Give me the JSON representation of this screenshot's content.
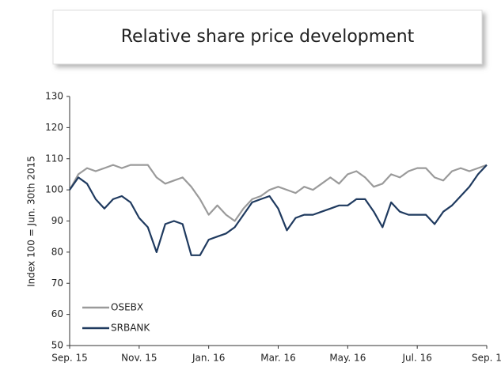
{
  "chart_data": {
    "type": "line",
    "title": "Relative share price development",
    "y_label": "Index 100 = Jun. 30th 2015",
    "categories": [
      "Sep. 15",
      null,
      null,
      null,
      null,
      null,
      null,
      null,
      "Nov. 15",
      null,
      null,
      null,
      null,
      null,
      null,
      null,
      "Jan. 16",
      null,
      null,
      null,
      null,
      null,
      null,
      null,
      "Mar. 16",
      null,
      null,
      null,
      null,
      null,
      null,
      null,
      "May. 16",
      null,
      null,
      null,
      null,
      null,
      null,
      null,
      "Jul. 16",
      null,
      null,
      null,
      null,
      null,
      null,
      null,
      "Sep. 1"
    ],
    "series": [
      {
        "name": "OSEBX",
        "color": "#9a9a9a",
        "values": [
          100,
          105,
          107,
          106,
          107,
          108,
          107,
          108,
          108,
          108,
          104,
          102,
          103,
          104,
          101,
          97,
          92,
          95,
          92,
          90,
          94,
          97,
          98,
          100,
          101,
          100,
          99,
          101,
          100,
          102,
          104,
          102,
          105,
          106,
          104,
          101,
          102,
          105,
          104,
          106,
          107,
          107,
          104,
          103,
          106,
          107,
          106,
          107,
          108
        ]
      },
      {
        "name": "SRBANK",
        "color": "#1f3a5f",
        "values": [
          100,
          104,
          102,
          97,
          94,
          97,
          98,
          96,
          91,
          88,
          80,
          89,
          90,
          89,
          79,
          79,
          84,
          85,
          86,
          88,
          92,
          96,
          97,
          98,
          94,
          87,
          91,
          92,
          92,
          93,
          94,
          95,
          95,
          97,
          97,
          93,
          88,
          96,
          93,
          92,
          92,
          92,
          89,
          93,
          95,
          98,
          101,
          105,
          108
        ]
      }
    ],
    "ylim": [
      50,
      130
    ],
    "yticks": [
      50,
      60,
      70,
      80,
      90,
      100,
      110,
      120,
      130
    ],
    "grid": false,
    "legend": "lower left"
  }
}
